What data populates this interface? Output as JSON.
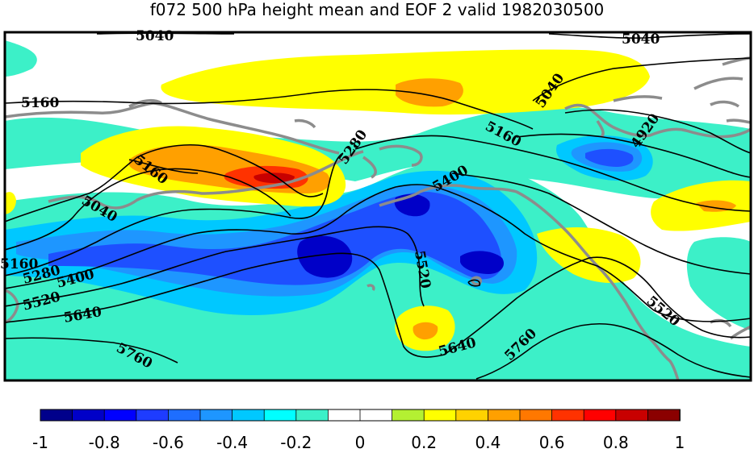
{
  "title": "f072 500 hPa height mean and EOF 2 valid 1982030500",
  "contours": [
    {
      "level": "5040",
      "label": "5040"
    },
    {
      "level": "5160",
      "label": "5160"
    },
    {
      "level": "5280",
      "label": "5280"
    },
    {
      "level": "5400",
      "label": "5400"
    },
    {
      "level": "5520",
      "label": "5520"
    },
    {
      "level": "5640",
      "label": "5640"
    },
    {
      "level": "5760",
      "label": "5760"
    },
    {
      "level": "4920",
      "label": "4920"
    }
  ],
  "colorbar": {
    "colors": [
      "#00008b",
      "#0000c8",
      "#0000ff",
      "#1e3cff",
      "#1e6eff",
      "#1e96ff",
      "#00c8ff",
      "#00ffff",
      "#3cf0c8",
      "#ffffff",
      "#ffffff",
      "#b4f032",
      "#ffff00",
      "#ffd200",
      "#ffa000",
      "#ff7800",
      "#ff3200",
      "#ff0000",
      "#c80000",
      "#8b0000"
    ],
    "tick_labels": [
      "-1",
      "-0.8",
      "-0.6",
      "-0.4",
      "-0.2",
      "0",
      "0.2",
      "0.4",
      "0.6",
      "0.8",
      "1"
    ]
  },
  "fill_colors": {
    "deep_blue": "#0000c8",
    "blue": "#1e50ff",
    "mid_blue": "#1e96ff",
    "light_blue": "#00c8ff",
    "turquoise": "#3cf0c8",
    "yellow": "#ffff00",
    "orange": "#ffa000",
    "red": "#ff3200",
    "dark_red": "#c80000"
  }
}
